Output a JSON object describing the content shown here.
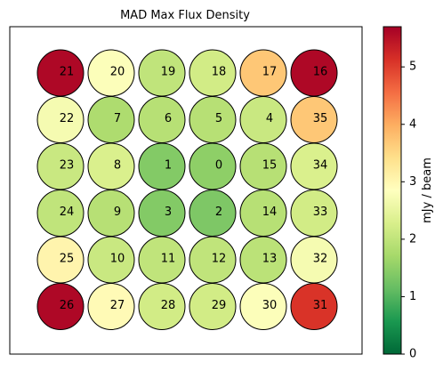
{
  "chart_data": {
    "type": "heatmap",
    "title": "MAD Max Flux Density",
    "colorbar": {
      "label": "mJy / beam",
      "colormap": "RdYlGn_r",
      "min": 0,
      "max": 5.7,
      "ticks": [
        0,
        1,
        2,
        3,
        4,
        5
      ]
    },
    "grid": false,
    "layout": {
      "rows": 6,
      "cols": 6
    },
    "cells": [
      {
        "id": 21,
        "row": 0,
        "col": 0,
        "value": 5.6
      },
      {
        "id": 20,
        "row": 0,
        "col": 1,
        "value": 2.8
      },
      {
        "id": 19,
        "row": 0,
        "col": 2,
        "value": 2.0
      },
      {
        "id": 18,
        "row": 0,
        "col": 3,
        "value": 2.2
      },
      {
        "id": 17,
        "row": 0,
        "col": 4,
        "value": 3.7
      },
      {
        "id": 16,
        "row": 0,
        "col": 5,
        "value": 5.6
      },
      {
        "id": 22,
        "row": 1,
        "col": 0,
        "value": 2.7
      },
      {
        "id": 7,
        "row": 1,
        "col": 1,
        "value": 1.8
      },
      {
        "id": 6,
        "row": 1,
        "col": 2,
        "value": 1.9
      },
      {
        "id": 5,
        "row": 1,
        "col": 3,
        "value": 1.9
      },
      {
        "id": 4,
        "row": 1,
        "col": 4,
        "value": 2.1
      },
      {
        "id": 35,
        "row": 1,
        "col": 5,
        "value": 3.7
      },
      {
        "id": 23,
        "row": 2,
        "col": 0,
        "value": 2.1
      },
      {
        "id": 8,
        "row": 2,
        "col": 1,
        "value": 2.3
      },
      {
        "id": 1,
        "row": 2,
        "col": 2,
        "value": 1.4
      },
      {
        "id": 0,
        "row": 2,
        "col": 3,
        "value": 1.5
      },
      {
        "id": 15,
        "row": 2,
        "col": 4,
        "value": 1.9
      },
      {
        "id": 34,
        "row": 2,
        "col": 5,
        "value": 2.3
      },
      {
        "id": 24,
        "row": 3,
        "col": 0,
        "value": 2.0
      },
      {
        "id": 9,
        "row": 3,
        "col": 1,
        "value": 1.9
      },
      {
        "id": 3,
        "row": 3,
        "col": 2,
        "value": 1.4
      },
      {
        "id": 2,
        "row": 3,
        "col": 3,
        "value": 1.35
      },
      {
        "id": 14,
        "row": 3,
        "col": 4,
        "value": 1.9
      },
      {
        "id": 33,
        "row": 3,
        "col": 5,
        "value": 2.2
      },
      {
        "id": 25,
        "row": 4,
        "col": 0,
        "value": 3.05
      },
      {
        "id": 10,
        "row": 4,
        "col": 1,
        "value": 2.1
      },
      {
        "id": 11,
        "row": 4,
        "col": 2,
        "value": 2.0
      },
      {
        "id": 12,
        "row": 4,
        "col": 3,
        "value": 2.0
      },
      {
        "id": 13,
        "row": 4,
        "col": 4,
        "value": 1.95
      },
      {
        "id": 32,
        "row": 4,
        "col": 5,
        "value": 2.7
      },
      {
        "id": 26,
        "row": 5,
        "col": 0,
        "value": 5.6
      },
      {
        "id": 27,
        "row": 5,
        "col": 1,
        "value": 2.95
      },
      {
        "id": 28,
        "row": 5,
        "col": 2,
        "value": 2.2
      },
      {
        "id": 29,
        "row": 5,
        "col": 3,
        "value": 2.2
      },
      {
        "id": 30,
        "row": 5,
        "col": 4,
        "value": 2.8
      },
      {
        "id": 31,
        "row": 5,
        "col": 5,
        "value": 5.1
      }
    ]
  }
}
